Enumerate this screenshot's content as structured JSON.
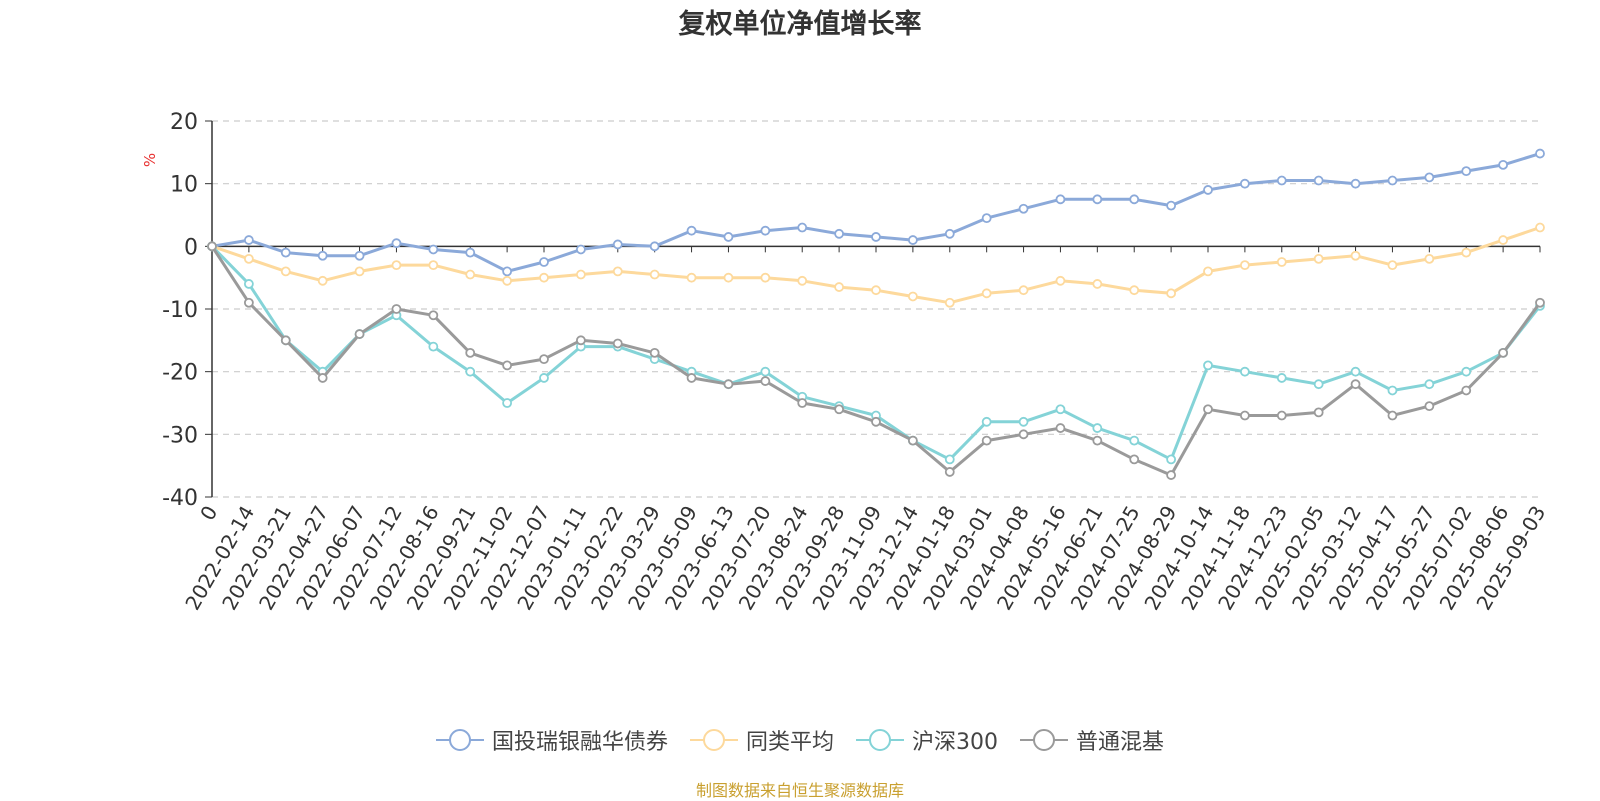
{
  "chart_data": {
    "type": "line",
    "title": "复权单位净值增长率",
    "ylabel": "%",
    "ylim": [
      -40,
      20
    ],
    "yticks": [
      20,
      10,
      0,
      -10,
      -20,
      -30,
      -40
    ],
    "grid": true,
    "legend_position": "bottom",
    "xtick_labels": [
      "0",
      "2022-02-14",
      "2022-03-21",
      "2022-04-27",
      "2022-06-07",
      "2022-07-12",
      "2022-08-16",
      "2022-09-21",
      "2022-11-02",
      "2022-12-07",
      "2023-01-11",
      "2023-02-22",
      "2023-03-29",
      "2023-05-09",
      "2023-06-13",
      "2023-07-20",
      "2023-08-24",
      "2023-09-28",
      "2023-11-09",
      "2023-12-14",
      "2024-01-18",
      "2024-03-01",
      "2024-04-08",
      "2024-05-16",
      "2024-06-21",
      "2024-07-25",
      "2024-08-29",
      "2024-10-14",
      "2024-11-18",
      "2024-12-23",
      "2025-02-05",
      "2025-03-12",
      "2025-04-17",
      "2025-05-27",
      "2025-07-02",
      "2025-08-06",
      "2025-09-03"
    ],
    "series": [
      {
        "name": "国投瑞银融华债券",
        "color": "#8ba9d9",
        "values": [
          0,
          1.0,
          -1.0,
          -1.5,
          -1.5,
          0.5,
          -0.5,
          -1.0,
          -4.0,
          -2.5,
          -0.5,
          0.3,
          0,
          2.5,
          1.5,
          2.5,
          3.0,
          2.0,
          1.5,
          1.0,
          2.0,
          4.5,
          6.0,
          7.5,
          7.5,
          7.5,
          6.5,
          9.0,
          10.0,
          10.5,
          10.5,
          10.0,
          10.5,
          11.0,
          12.0,
          13.0,
          14.8
        ]
      },
      {
        "name": "同类平均",
        "color": "#fdd99c",
        "values": [
          0,
          -2.0,
          -4.0,
          -5.5,
          -4.0,
          -3.0,
          -3.0,
          -4.5,
          -5.5,
          -5.0,
          -4.5,
          -4.0,
          -4.5,
          -5.0,
          -5.0,
          -5.0,
          -5.5,
          -6.5,
          -7.0,
          -8.0,
          -9.0,
          -7.5,
          -7.0,
          -5.5,
          -6.0,
          -7.0,
          -7.5,
          -4.0,
          -3.0,
          -2.5,
          -2.0,
          -1.5,
          -3.0,
          -2.0,
          -1.0,
          1.0,
          3.0
        ]
      },
      {
        "name": "沪深300",
        "color": "#84d3d7",
        "values": [
          0,
          -6.0,
          -15.0,
          -20.0,
          -14.0,
          -11.0,
          -16.0,
          -20.0,
          -25.0,
          -21.0,
          -16.0,
          -16.0,
          -18.0,
          -20.0,
          -22.0,
          -20.0,
          -24.0,
          -25.5,
          -27.0,
          -31.0,
          -34.0,
          -28.0,
          -28.0,
          -26.0,
          -29.0,
          -31.0,
          -34.0,
          -19.0,
          -20.0,
          -21.0,
          -22.0,
          -20.0,
          -23.0,
          -22.0,
          -20.0,
          -17.0,
          -9.5
        ]
      },
      {
        "name": "普通混基",
        "color": "#9a9a9a",
        "values": [
          0,
          -9.0,
          -15.0,
          -21.0,
          -14.0,
          -10.0,
          -11.0,
          -17.0,
          -19.0,
          -18.0,
          -15.0,
          -15.5,
          -17.0,
          -21.0,
          -22.0,
          -21.5,
          -25.0,
          -26.0,
          -28.0,
          -31.0,
          -36.0,
          -31.0,
          -30.0,
          -29.0,
          -31.0,
          -34.0,
          -36.5,
          -26.0,
          -27.0,
          -27.0,
          -26.5,
          -22.0,
          -27.0,
          -25.5,
          -23.0,
          -17.0,
          -9.0
        ]
      }
    ]
  },
  "legend": {
    "items": [
      {
        "label": "国投瑞银融华债券",
        "color": "#8ba9d9"
      },
      {
        "label": "同类平均",
        "color": "#fdd99c"
      },
      {
        "label": "沪深300",
        "color": "#84d3d7"
      },
      {
        "label": "普通混基",
        "color": "#9a9a9a"
      }
    ]
  },
  "source_note": "制图数据来自恒生聚源数据库"
}
